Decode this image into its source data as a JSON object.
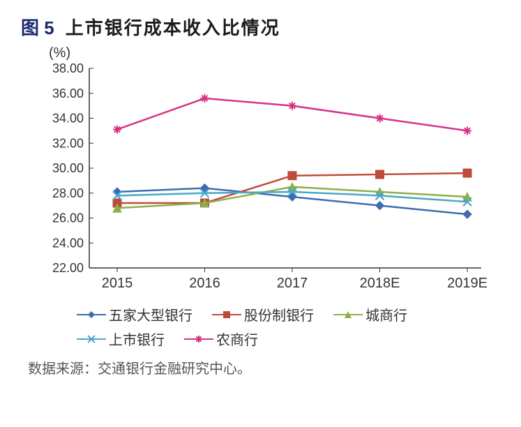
{
  "figure_label": "图 5",
  "figure_title": "上市银行成本收入比情况",
  "y_unit": "(%)",
  "source": "数据来源：交通银行金融研究中心。",
  "chart": {
    "type": "line",
    "background_color": "#ffffff",
    "axis_color": "#333333",
    "ylim": [
      22.0,
      38.0
    ],
    "ytick_step": 2.0,
    "yticks": [
      "22.00",
      "24.00",
      "26.00",
      "28.00",
      "30.00",
      "32.00",
      "34.00",
      "36.00",
      "38.00"
    ],
    "categories": [
      "2015",
      "2016",
      "2017",
      "2018E",
      "2019E"
    ],
    "line_width": 2.5,
    "marker_size": 6,
    "series": [
      {
        "key": "s1",
        "name": "五家大型银行",
        "color": "#3b6db0",
        "marker": "diamond",
        "values": [
          28.1,
          28.4,
          27.7,
          27.0,
          26.3
        ]
      },
      {
        "key": "s2",
        "name": "股份制银行",
        "color": "#c04a3a",
        "marker": "square",
        "values": [
          27.2,
          27.2,
          29.4,
          29.5,
          29.6
        ]
      },
      {
        "key": "s3",
        "name": "城商行",
        "color": "#8fae4a",
        "marker": "triangle",
        "values": [
          26.8,
          27.2,
          28.5,
          28.1,
          27.7
        ]
      },
      {
        "key": "s4",
        "name": "上市银行",
        "color": "#4aa7c7",
        "marker": "x",
        "values": [
          27.8,
          28.0,
          28.1,
          27.8,
          27.3
        ]
      },
      {
        "key": "s5",
        "name": "农商行",
        "color": "#d63384",
        "marker": "star",
        "values": [
          33.1,
          35.6,
          35.0,
          34.0,
          33.0
        ]
      }
    ],
    "title_fontsize": 26,
    "label_fontsize": 20,
    "tick_fontsize": 18
  },
  "legend_layout": [
    [
      "s1",
      "s2",
      "s3"
    ],
    [
      "s4",
      "s5"
    ]
  ]
}
